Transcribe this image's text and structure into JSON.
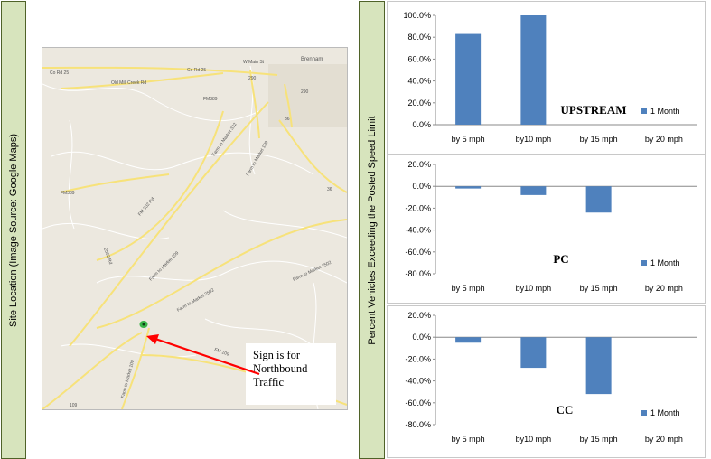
{
  "left_label": "Site Location (Image Source: Google Maps)",
  "right_label": "Percent Vehicles Exceeding the Posted Speed Limit",
  "map": {
    "labels": [
      "Brenham",
      "W Main St",
      "Co Rd 25",
      "Co Rd 25",
      "Old Mill Creek Rd",
      "FM389",
      "FM389",
      "Farm to Market 332",
      "Farm to Market 109",
      "FM 332 Rd",
      "Farm to Market 109",
      "Farm to Market 2502",
      "Farm to Market 2502",
      "Farm to Market 109",
      "2502 Rd",
      "290",
      "290",
      "36",
      "36",
      "109",
      "FM 109"
    ],
    "sign_text": [
      "Sign is for",
      "Northbound",
      "Traffic"
    ],
    "marker_color": "#3ab44a",
    "arrow_color": "#ff0000"
  },
  "chart_data": [
    {
      "type": "bar",
      "title": "UPSTREAM",
      "categories": [
        "by 5 mph",
        "by10 mph",
        "by 15 mph",
        "by 20 mph"
      ],
      "series": [
        {
          "name": "1 Month",
          "values": [
            83,
            100,
            0,
            0
          ]
        }
      ],
      "ylim": [
        0,
        100
      ],
      "yticks": [
        "0.0%",
        "20.0%",
        "40.0%",
        "60.0%",
        "80.0%",
        "100.0%"
      ],
      "color": "#4f81bd",
      "legend": "right"
    },
    {
      "type": "bar",
      "title": "PC",
      "categories": [
        "by 5 mph",
        "by10 mph",
        "by 15 mph",
        "by 20 mph"
      ],
      "series": [
        {
          "name": "1 Month",
          "values": [
            -2,
            -8,
            -24,
            0
          ]
        }
      ],
      "ylim": [
        -80,
        20
      ],
      "yticks": [
        "-80.0%",
        "-60.0%",
        "-40.0%",
        "-20.0%",
        "0.0%",
        "20.0%"
      ],
      "color": "#4f81bd",
      "legend": "right"
    },
    {
      "type": "bar",
      "title": "CC",
      "categories": [
        "by 5 mph",
        "by10 mph",
        "by 15 mph",
        "by 20 mph"
      ],
      "series": [
        {
          "name": "1 Month",
          "values": [
            -5,
            -28,
            -52,
            0
          ]
        }
      ],
      "ylim": [
        -80,
        20
      ],
      "yticks": [
        "-80.0%",
        "-60.0%",
        "-40.0%",
        "-20.0%",
        "0.0%",
        "20.0%"
      ],
      "color": "#4f81bd",
      "legend": "right"
    }
  ]
}
